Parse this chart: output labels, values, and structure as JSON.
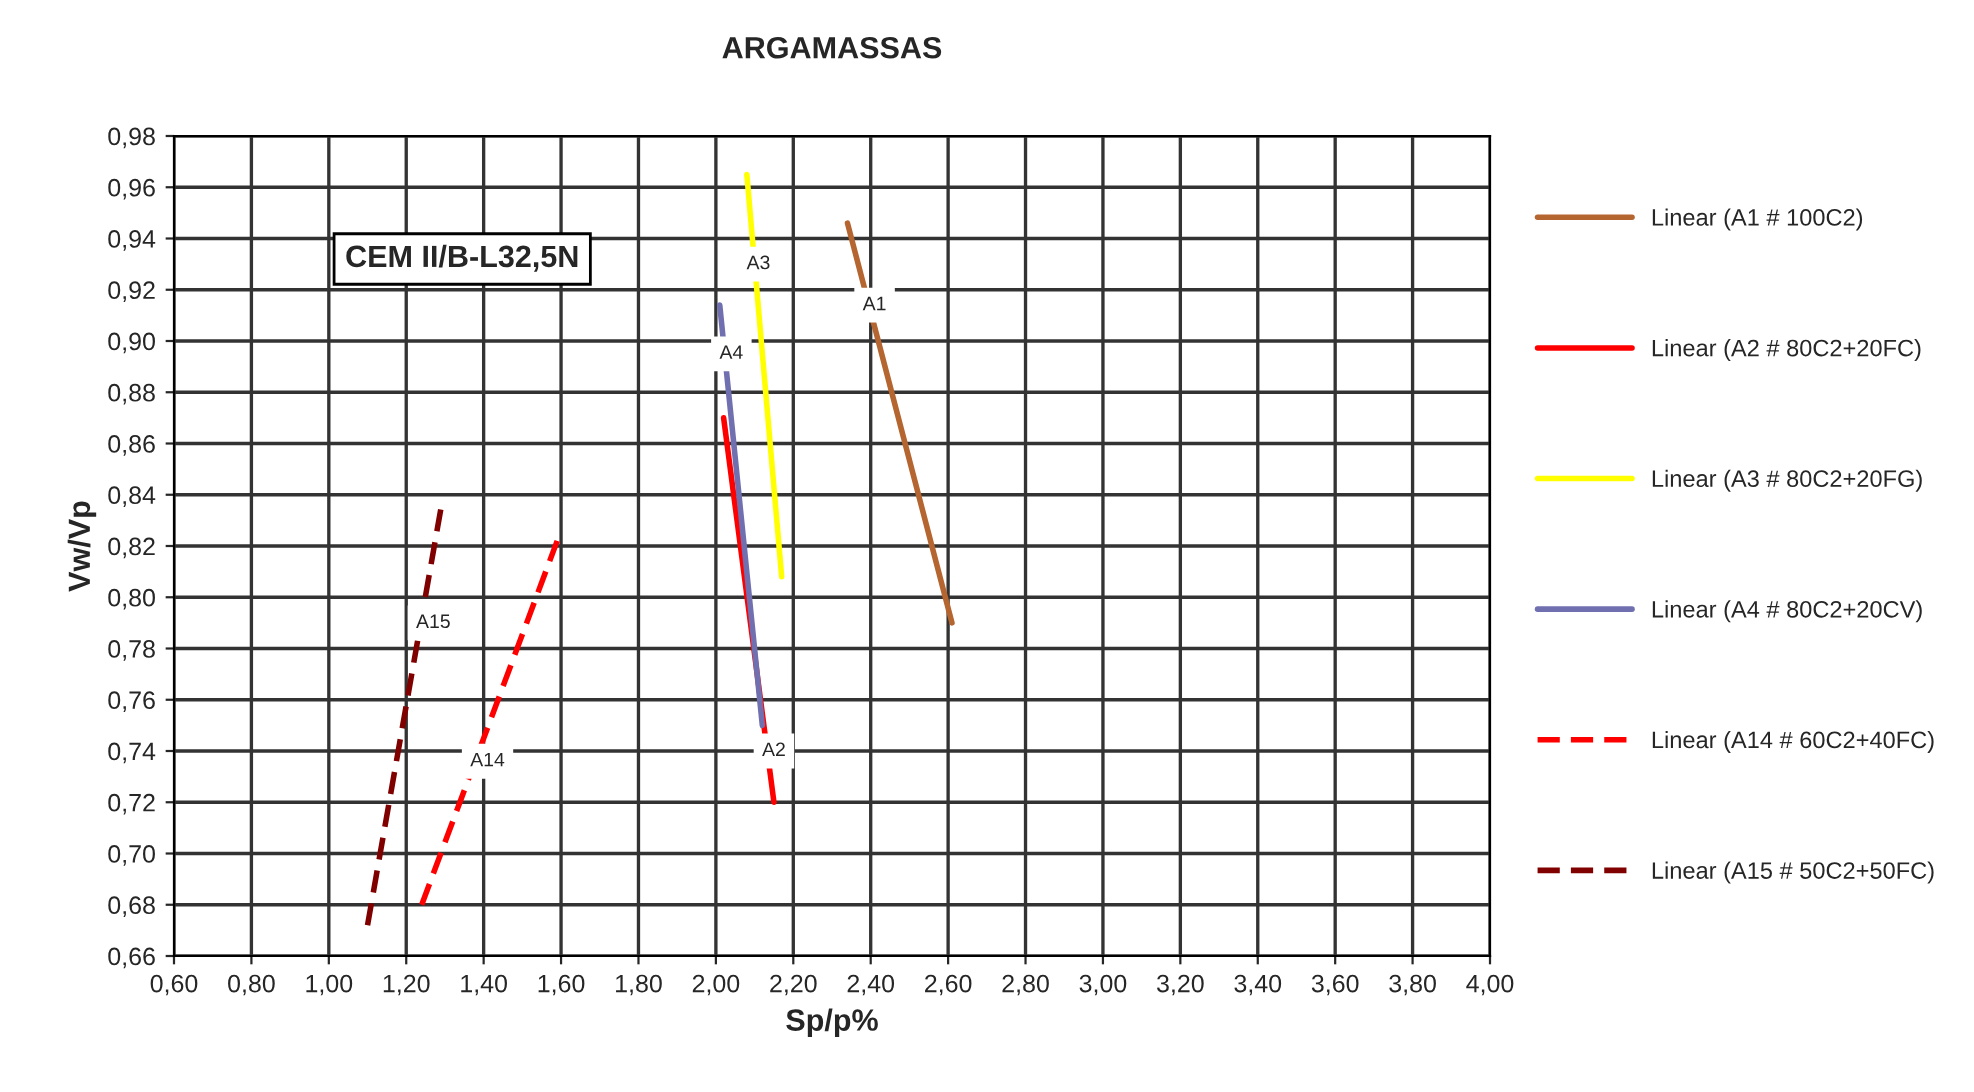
{
  "chart_data": {
    "type": "line",
    "title": "ARGAMASSAS",
    "xlabel": "Sp/p%",
    "ylabel": "Vw/Vp",
    "xlim": [
      0.6,
      4.0
    ],
    "ylim": [
      0.66,
      0.98
    ],
    "xticks": [
      {
        "value": 0.6,
        "label": "0,60"
      },
      {
        "value": 0.8,
        "label": "0,80"
      },
      {
        "value": 1.0,
        "label": "1,00"
      },
      {
        "value": 1.2,
        "label": "1,20"
      },
      {
        "value": 1.4,
        "label": "1,40"
      },
      {
        "value": 1.6,
        "label": "1,60"
      },
      {
        "value": 1.8,
        "label": "1,80"
      },
      {
        "value": 2.0,
        "label": "2,00"
      },
      {
        "value": 2.2,
        "label": "2,20"
      },
      {
        "value": 2.4,
        "label": "2,40"
      },
      {
        "value": 2.6,
        "label": "2,60"
      },
      {
        "value": 2.8,
        "label": "2,80"
      },
      {
        "value": 3.0,
        "label": "3,00"
      },
      {
        "value": 3.2,
        "label": "3,20"
      },
      {
        "value": 3.4,
        "label": "3,40"
      },
      {
        "value": 3.6,
        "label": "3,60"
      },
      {
        "value": 3.8,
        "label": "3,80"
      },
      {
        "value": 4.0,
        "label": "4,00"
      }
    ],
    "yticks": [
      {
        "value": 0.66,
        "label": "0,66"
      },
      {
        "value": 0.68,
        "label": "0,68"
      },
      {
        "value": 0.7,
        "label": "0,70"
      },
      {
        "value": 0.72,
        "label": "0,72"
      },
      {
        "value": 0.74,
        "label": "0,74"
      },
      {
        "value": 0.76,
        "label": "0,76"
      },
      {
        "value": 0.78,
        "label": "0,78"
      },
      {
        "value": 0.8,
        "label": "0,80"
      },
      {
        "value": 0.82,
        "label": "0,82"
      },
      {
        "value": 0.84,
        "label": "0,84"
      },
      {
        "value": 0.86,
        "label": "0,86"
      },
      {
        "value": 0.88,
        "label": "0,88"
      },
      {
        "value": 0.9,
        "label": "0,90"
      },
      {
        "value": 0.92,
        "label": "0,92"
      },
      {
        "value": 0.94,
        "label": "0,94"
      },
      {
        "value": 0.96,
        "label": "0,96"
      },
      {
        "value": 0.98,
        "label": "0,98"
      }
    ],
    "grid": true,
    "legend": "right",
    "marker": "none",
    "series": [
      {
        "name": "Linear (A1 # 100C2)",
        "color": "#b5652f",
        "line_style": "solid",
        "x": [
          2.34,
          2.61
        ],
        "values": [
          0.946,
          0.79
        ]
      },
      {
        "name": "Linear (A2 # 80C2+20FC)",
        "color": "#ff0000",
        "line_style": "solid",
        "x": [
          2.02,
          2.15
        ],
        "values": [
          0.87,
          0.72
        ]
      },
      {
        "name": "Linear (A3 # 80C2+20FG)",
        "color": "#ffff00",
        "line_style": "solid",
        "x": [
          2.08,
          2.17
        ],
        "values": [
          0.965,
          0.808
        ]
      },
      {
        "name": "Linear (A4 # 80C2+20CV)",
        "color": "#7070b0",
        "line_style": "solid",
        "x": [
          2.01,
          2.12
        ],
        "values": [
          0.914,
          0.75
        ]
      },
      {
        "name": "Linear (A14 # 60C2+40FC)",
        "color": "#ff0000",
        "line_style": "dashed",
        "x": [
          1.24,
          1.59
        ],
        "values": [
          0.68,
          0.822
        ]
      },
      {
        "name": "Linear (A15 # 50C2+50FC)",
        "color": "#800000",
        "line_style": "dashed",
        "x": [
          1.1,
          1.29
        ],
        "values": [
          0.672,
          0.835
        ]
      }
    ],
    "annotations": [
      "CEM II/B-L32,5N",
      {
        "text": "A1",
        "x": 2.41,
        "y": 0.914
      },
      {
        "text": "A2",
        "x": 2.15,
        "y": 0.74
      },
      {
        "text": "A3",
        "x": 2.11,
        "y": 0.93
      },
      {
        "text": "A4",
        "x": 2.04,
        "y": 0.895
      },
      {
        "text": "A14",
        "x": 1.41,
        "y": 0.736
      },
      {
        "text": "A15",
        "x": 1.27,
        "y": 0.79
      }
    ]
  }
}
